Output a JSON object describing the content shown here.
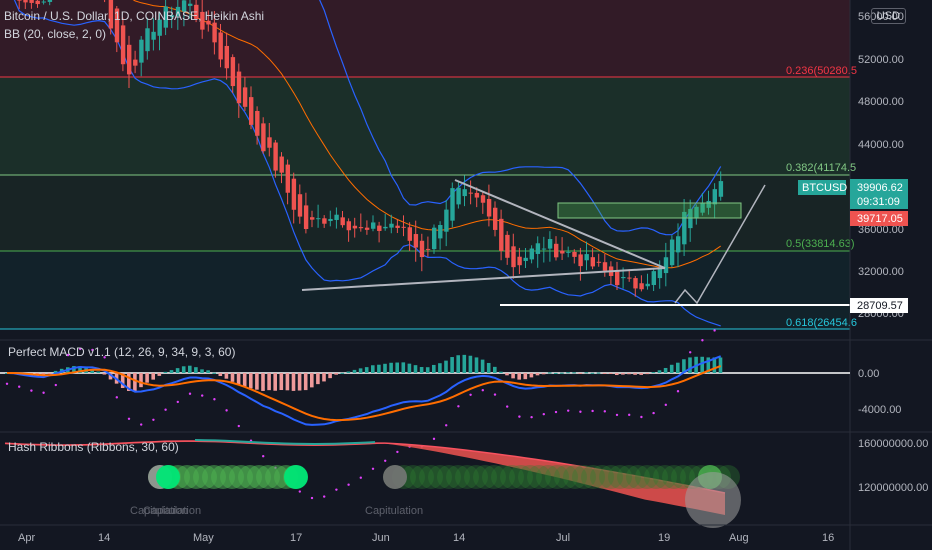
{
  "header": {
    "symbol_title": "Bitcoin / U.S. Dollar, 1D, COINBASE, Heikin Ashi",
    "indicator_bb": "BB (20, close, 2, 0)",
    "currency_button": "USD"
  },
  "price_axis": {
    "ticks": [
      "56000.00",
      "52000.00",
      "48000.00",
      "44000.00",
      "36000.00",
      "32000.00",
      "28000.00"
    ],
    "symbol_tag": "BTCUSD",
    "last_price": "39906.62",
    "countdown": "09:31:09",
    "open_price": "39717.05",
    "support_label": "28709.57"
  },
  "fib_levels": [
    {
      "label": "0.236(50280.5",
      "value": 50280
    },
    {
      "label": "0.382(41174.5",
      "value": 41174
    },
    {
      "label": "0.5(33814.63)",
      "value": 33814
    },
    {
      "label": "0.618(26454.6",
      "value": 26454
    }
  ],
  "macd": {
    "title": "Perfect MACD v1.1 (12, 26, 9, 34, 9, 3, 60)",
    "ticks": [
      "0.00",
      "-4000.00"
    ]
  },
  "hash": {
    "title": "Hash Ribbons (Ribbons, 30, 60)",
    "ticks": [
      "160000000.00",
      "120000000.00"
    ],
    "capitulation_labels": [
      "Capitulation",
      "Capitulation",
      "Capitulation"
    ]
  },
  "time_axis": {
    "labels": [
      "Apr",
      "14",
      "May",
      "17",
      "Jun",
      "14",
      "Jul",
      "19",
      "Aug",
      "16"
    ]
  },
  "colors": {
    "up": "#26a69a",
    "down": "#ef5350",
    "bb": "#2962ff",
    "basis": "#ff6d00",
    "background": "#131722",
    "fib_red": "#f23645",
    "fib_green": "#4caf50"
  },
  "chart_data": {
    "type": "candlestick",
    "title": "Bitcoin / U.S. Dollar, 1D, COINBASE, Heikin Ashi",
    "ylim": [
      25000,
      57500
    ],
    "x": [
      "Apr",
      "14",
      "May",
      "17",
      "Jun",
      "14",
      "Jul",
      "19",
      "Aug",
      "16"
    ],
    "close_series": [
      {
        "date": "Apr",
        "value": 58800
      },
      {
        "date": "Apr 7",
        "value": 57000
      },
      {
        "date": "14",
        "value": 61500
      },
      {
        "date": "Apr 17",
        "value": 60000
      },
      {
        "date": "Apr 24",
        "value": 50500
      },
      {
        "date": "May",
        "value": 55500
      },
      {
        "date": "May 8",
        "value": 57500
      },
      {
        "date": "May 12",
        "value": 53500
      },
      {
        "date": "May 15",
        "value": 47000
      },
      {
        "date": "17",
        "value": 42000
      },
      {
        "date": "May 20",
        "value": 36000
      },
      {
        "date": "May 24",
        "value": 37500
      },
      {
        "date": "May 30",
        "value": 35500
      },
      {
        "date": "Jun",
        "value": 36500
      },
      {
        "date": "Jun 8",
        "value": 33500
      },
      {
        "date": "14",
        "value": 39500
      },
      {
        "date": "Jun 17",
        "value": 38000
      },
      {
        "date": "Jun 22",
        "value": 32500
      },
      {
        "date": "Jul",
        "value": 34500
      },
      {
        "date": "Jul 10",
        "value": 33500
      },
      {
        "date": "Jul 15",
        "value": 32000
      },
      {
        "date": "19",
        "value": 30500
      },
      {
        "date": "Jul 22",
        "value": 32000
      },
      {
        "date": "Jul 27",
        "value": 38500
      },
      {
        "date": "Jul 29",
        "value": 39906.62
      }
    ],
    "levels": {
      "support": 28709.57,
      "last": 39906.62,
      "open": 39717.05
    }
  }
}
